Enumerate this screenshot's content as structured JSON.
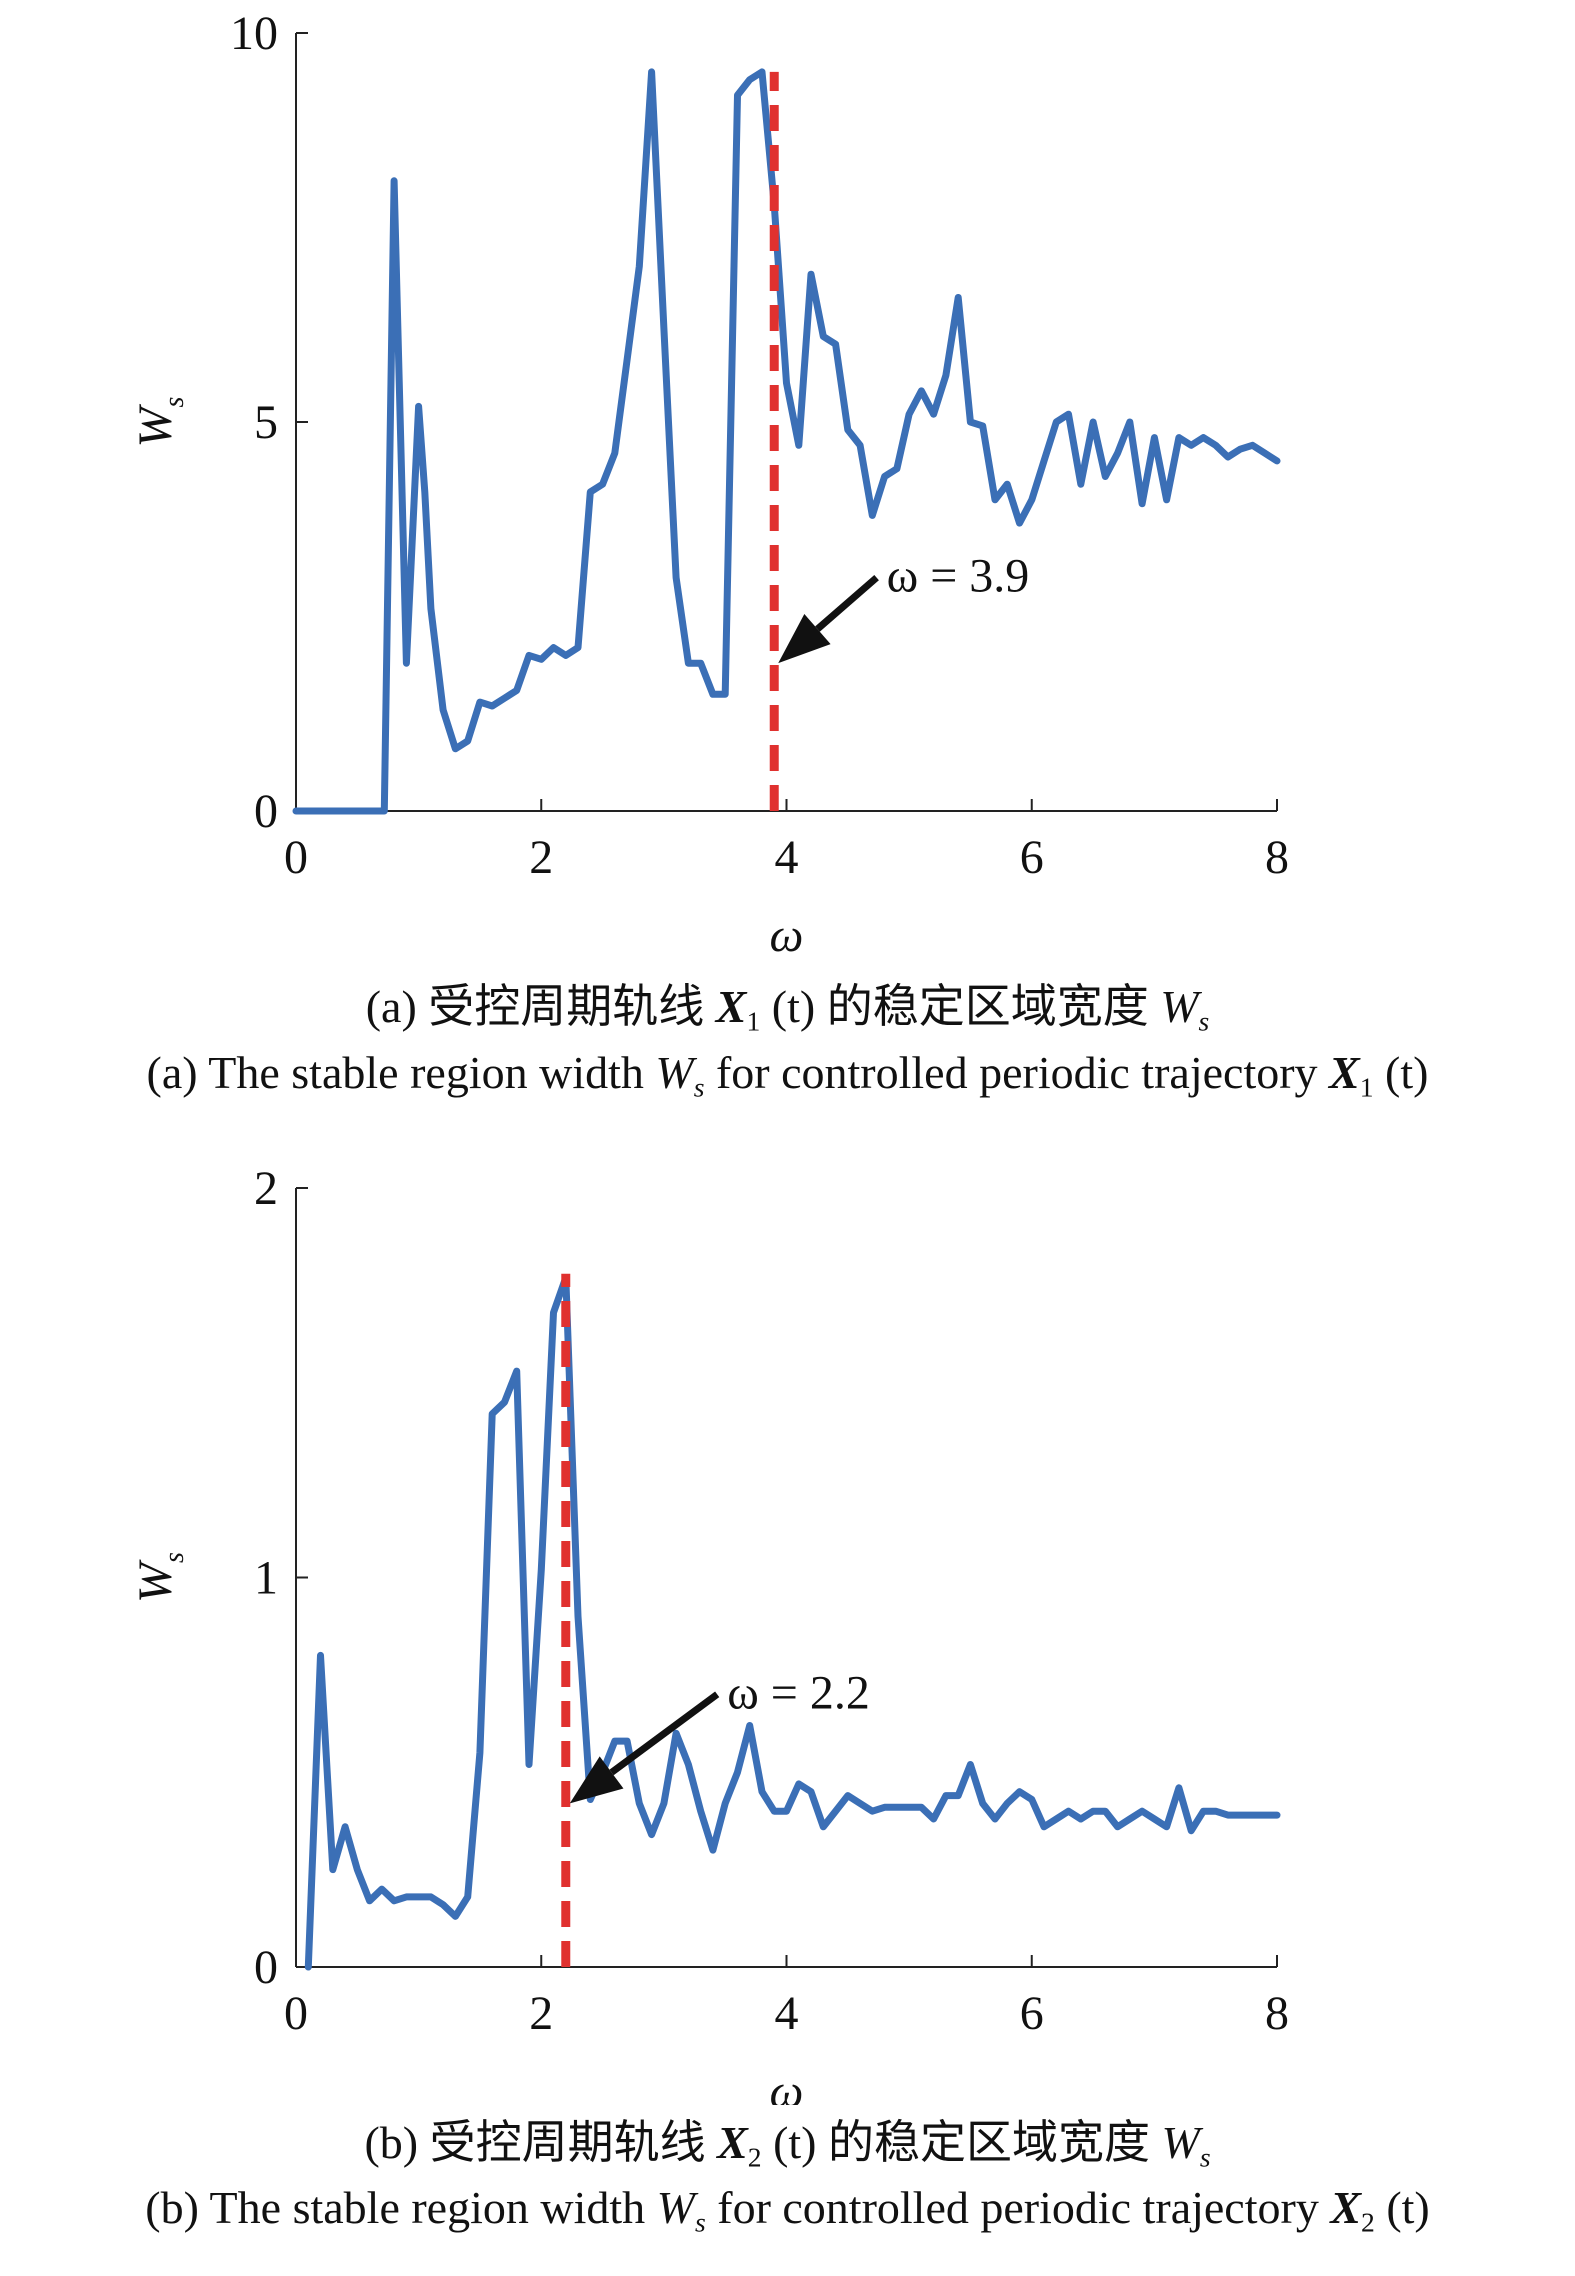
{
  "chart_data": [
    {
      "type": "line",
      "xlabel": "ω",
      "ylabel": "W",
      "ylabel_sub": "s",
      "xlim": [
        0,
        8
      ],
      "ylim": [
        0,
        10
      ],
      "xticks": [
        0,
        2,
        4,
        6,
        8
      ],
      "yticks": [
        0,
        5,
        10
      ],
      "series_color": "#3b6fb6",
      "marker_color": "#e0312f",
      "marker_x": 3.9,
      "marker_ymax": 9.5,
      "annotation": {
        "text": "ω = 3.9",
        "x": 4.8,
        "y": 3.0,
        "arrow_to": [
          3.9,
          1.9
        ]
      },
      "x": [
        0,
        0.7,
        0.72,
        0.8,
        0.9,
        1.0,
        1.05,
        1.1,
        1.2,
        1.3,
        1.4,
        1.5,
        1.6,
        1.7,
        1.8,
        1.9,
        2.0,
        2.1,
        2.2,
        2.3,
        2.4,
        2.5,
        2.6,
        2.7,
        2.8,
        2.9,
        3.0,
        3.1,
        3.2,
        3.3,
        3.4,
        3.5,
        3.6,
        3.7,
        3.8,
        3.9,
        4.0,
        4.1,
        4.2,
        4.3,
        4.35,
        4.4,
        4.5,
        4.6,
        4.7,
        4.8,
        4.9,
        5.0,
        5.1,
        5.2,
        5.3,
        5.4,
        5.5,
        5.6,
        5.7,
        5.8,
        5.9,
        6.0,
        6.1,
        6.2,
        6.3,
        6.4,
        6.5,
        6.6,
        6.7,
        6.8,
        6.9,
        7.0,
        7.1,
        7.2,
        7.3,
        7.4,
        7.5,
        7.6,
        7.7,
        7.8,
        7.9,
        8.0
      ],
      "y": [
        0,
        0,
        0,
        8.1,
        1.9,
        5.2,
        4.1,
        2.6,
        1.3,
        0.8,
        0.9,
        1.4,
        1.35,
        1.45,
        1.55,
        2.0,
        1.95,
        2.1,
        2.0,
        2.1,
        4.1,
        4.2,
        4.6,
        5.8,
        7.0,
        9.5,
        6.2,
        3.0,
        1.9,
        1.9,
        1.5,
        1.5,
        9.2,
        9.4,
        9.5,
        7.8,
        5.5,
        4.7,
        6.9,
        6.1,
        6.05,
        6.0,
        4.9,
        4.7,
        3.8,
        4.3,
        4.4,
        5.1,
        5.4,
        5.1,
        5.6,
        6.6,
        5.0,
        4.95,
        4.0,
        4.2,
        3.7,
        4.0,
        4.5,
        5.0,
        5.1,
        4.2,
        5.0,
        4.3,
        4.6,
        5.0,
        3.95,
        4.8,
        4.0,
        4.8,
        4.7,
        4.8,
        4.7,
        4.55,
        4.65,
        4.7,
        4.6,
        4.5
      ]
    },
    {
      "type": "line",
      "xlabel": "ω",
      "ylabel": "W",
      "ylabel_sub": "s",
      "xlim": [
        0,
        8
      ],
      "ylim": [
        0,
        2
      ],
      "xticks": [
        0,
        2,
        4,
        6,
        8
      ],
      "yticks": [
        0,
        1,
        2
      ],
      "series_color": "#3b6fb6",
      "marker_color": "#e0312f",
      "marker_x": 2.2,
      "marker_ymax": 1.78,
      "annotation": {
        "text": "ω = 2.2",
        "x": 3.5,
        "y": 0.7,
        "arrow_to": [
          2.2,
          0.42
        ]
      },
      "x": [
        0.1,
        0.2,
        0.3,
        0.4,
        0.5,
        0.6,
        0.7,
        0.8,
        0.9,
        1.0,
        1.1,
        1.2,
        1.3,
        1.4,
        1.5,
        1.6,
        1.7,
        1.8,
        1.9,
        2.0,
        2.1,
        2.2,
        2.3,
        2.4,
        2.5,
        2.6,
        2.7,
        2.8,
        2.9,
        3.0,
        3.1,
        3.2,
        3.3,
        3.4,
        3.5,
        3.6,
        3.7,
        3.8,
        3.9,
        4.0,
        4.1,
        4.2,
        4.3,
        4.4,
        4.5,
        4.6,
        4.7,
        4.8,
        4.9,
        5.0,
        5.1,
        5.2,
        5.3,
        5.4,
        5.5,
        5.6,
        5.7,
        5.8,
        5.9,
        6.0,
        6.1,
        6.2,
        6.3,
        6.4,
        6.5,
        6.6,
        6.7,
        6.8,
        6.9,
        7.0,
        7.1,
        7.2,
        7.3,
        7.4,
        7.5,
        7.6,
        7.7,
        7.8,
        7.9,
        8.0
      ],
      "y": [
        0.0,
        0.8,
        0.25,
        0.36,
        0.25,
        0.17,
        0.2,
        0.17,
        0.18,
        0.18,
        0.18,
        0.16,
        0.13,
        0.18,
        0.55,
        1.42,
        1.45,
        1.53,
        0.52,
        1.02,
        1.68,
        1.77,
        0.9,
        0.43,
        0.5,
        0.58,
        0.58,
        0.42,
        0.34,
        0.42,
        0.6,
        0.52,
        0.4,
        0.3,
        0.42,
        0.5,
        0.62,
        0.45,
        0.4,
        0.4,
        0.47,
        0.45,
        0.36,
        0.4,
        0.44,
        0.42,
        0.4,
        0.41,
        0.41,
        0.41,
        0.41,
        0.38,
        0.44,
        0.44,
        0.52,
        0.42,
        0.38,
        0.42,
        0.45,
        0.43,
        0.36,
        0.38,
        0.4,
        0.38,
        0.4,
        0.4,
        0.36,
        0.38,
        0.4,
        0.38,
        0.36,
        0.46,
        0.35,
        0.4,
        0.4,
        0.39,
        0.39,
        0.39,
        0.39,
        0.39
      ]
    }
  ],
  "captions": {
    "a": {
      "cn_prefix": "(a) 受控周期轨线",
      "cn_var": "X",
      "cn_var_sub": "1",
      "cn_arg": "(t)",
      "cn_mid": "的稳定区域宽度",
      "cn_w": "W",
      "cn_w_sub": "s",
      "en_prefix": "(a) The stable region width",
      "en_w": "W",
      "en_w_sub": "s",
      "en_mid": "for controlled periodic trajectory",
      "en_var": "X",
      "en_var_sub": "1",
      "en_arg": "(t)"
    },
    "b": {
      "cn_prefix": "(b) 受控周期轨线",
      "cn_var": "X",
      "cn_var_sub": "2",
      "cn_arg": "(t)",
      "cn_mid": "的稳定区域宽度",
      "cn_w": "W",
      "cn_w_sub": "s",
      "en_prefix": "(b) The stable region width",
      "en_w": "W",
      "en_w_sub": "s",
      "en_mid": "for controlled periodic trajectory",
      "en_var": "X",
      "en_var_sub": "2",
      "en_arg": "(t)"
    }
  }
}
